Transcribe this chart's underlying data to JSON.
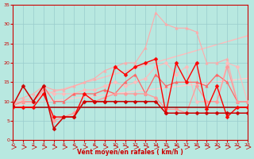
{
  "xlabel": "Vent moyen/en rafales ( km/h )",
  "xlim": [
    0,
    23
  ],
  "ylim": [
    0,
    35
  ],
  "yticks": [
    0,
    5,
    10,
    15,
    20,
    25,
    30,
    35
  ],
  "xticks": [
    0,
    1,
    2,
    3,
    4,
    5,
    6,
    7,
    8,
    9,
    10,
    11,
    12,
    13,
    14,
    15,
    16,
    17,
    18,
    19,
    20,
    21,
    22,
    23
  ],
  "bg_color": "#b8e8e0",
  "grid_color": "#99cccc",
  "series": [
    {
      "x": [
        0,
        23
      ],
      "y": [
        9.5,
        27.0
      ],
      "color": "#ffbbbb",
      "lw": 1.0,
      "marker": null,
      "ms": 0,
      "zorder": 1
    },
    {
      "x": [
        0,
        23
      ],
      "y": [
        9.0,
        16.0
      ],
      "color": "#ffcccc",
      "lw": 1.0,
      "marker": null,
      "ms": 0,
      "zorder": 1
    },
    {
      "x": [
        0,
        1,
        2,
        3,
        4,
        5,
        6,
        7,
        8,
        9,
        10,
        11,
        12,
        13,
        14,
        15,
        16,
        17,
        18,
        19,
        20,
        21,
        22,
        23
      ],
      "y": [
        10,
        11,
        12,
        14,
        13,
        13,
        14,
        15,
        16,
        18,
        19,
        20,
        20,
        24,
        33,
        30,
        29,
        29,
        28,
        20,
        20,
        21,
        10,
        10
      ],
      "color": "#ffaaaa",
      "lw": 0.8,
      "marker": "^",
      "ms": 2.5,
      "zorder": 2
    },
    {
      "x": [
        0,
        1,
        2,
        3,
        4,
        5,
        6,
        7,
        8,
        9,
        10,
        11,
        12,
        13,
        14,
        15,
        16,
        17,
        18,
        19,
        20,
        21,
        22,
        23
      ],
      "y": [
        10,
        10,
        10,
        13,
        12,
        12,
        12,
        13,
        13,
        14,
        15,
        14,
        15,
        16,
        19,
        20,
        17,
        19,
        10,
        10,
        10,
        20,
        19,
        10
      ],
      "color": "#ffbbbb",
      "lw": 0.8,
      "marker": "D",
      "ms": 2.5,
      "zorder": 2
    },
    {
      "x": [
        0,
        1,
        2,
        3,
        4,
        5,
        6,
        7,
        8,
        9,
        10,
        11,
        12,
        13,
        14,
        15,
        16,
        17,
        18,
        19,
        20,
        21,
        22,
        23
      ],
      "y": [
        9,
        10,
        10,
        14,
        10,
        10,
        12,
        12,
        12,
        13,
        12,
        15,
        17,
        12,
        17,
        14,
        15,
        15,
        15,
        14,
        17,
        15,
        10,
        10
      ],
      "color": "#ff6666",
      "lw": 0.9,
      "marker": "^",
      "ms": 2.5,
      "zorder": 3
    },
    {
      "x": [
        0,
        1,
        2,
        3,
        4,
        5,
        6,
        7,
        8,
        9,
        10,
        11,
        12,
        13,
        14,
        15,
        16,
        17,
        18,
        19,
        20,
        21,
        22,
        23
      ],
      "y": [
        9,
        10,
        10,
        13,
        5,
        6,
        7,
        10,
        10,
        11,
        12,
        12,
        12,
        12,
        11,
        8,
        8,
        7,
        14,
        10,
        10,
        19,
        10,
        10
      ],
      "color": "#ff9999",
      "lw": 0.9,
      "marker": "D",
      "ms": 2.5,
      "zorder": 3
    },
    {
      "x": [
        0,
        1,
        2,
        3,
        4,
        5,
        6,
        7,
        8,
        9,
        10,
        11,
        12,
        13,
        14,
        15,
        16,
        17,
        18,
        19,
        20,
        21,
        22,
        23
      ],
      "y": [
        8.5,
        8.5,
        8.5,
        8.5,
        8.5,
        8.5,
        8.5,
        8.5,
        8.5,
        8.5,
        8.5,
        8.5,
        8.5,
        8.5,
        8.5,
        8.5,
        8.5,
        8.5,
        8.5,
        8.5,
        8.5,
        8.5,
        8.5,
        8.5
      ],
      "color": "#990000",
      "lw": 1.1,
      "marker": null,
      "ms": 0,
      "zorder": 4
    },
    {
      "x": [
        0,
        1,
        2,
        3,
        4,
        5,
        6,
        7,
        8,
        9,
        10,
        11,
        12,
        13,
        14,
        15,
        16,
        17,
        18,
        19,
        20,
        21,
        22,
        23
      ],
      "y": [
        8.5,
        8.5,
        8.5,
        12,
        6,
        6,
        6,
        12,
        10,
        10,
        19,
        17,
        19,
        20,
        21,
        7,
        20,
        15,
        20,
        8,
        14,
        6,
        8.5,
        8.5
      ],
      "color": "#ff0000",
      "lw": 1.0,
      "marker": "D",
      "ms": 2.5,
      "zorder": 5
    },
    {
      "x": [
        0,
        1,
        2,
        3,
        4,
        5,
        6,
        7,
        8,
        9,
        10,
        11,
        12,
        13,
        14,
        15,
        16,
        17,
        18,
        19,
        20,
        21,
        22,
        23
      ],
      "y": [
        9,
        14,
        10,
        14,
        3,
        6,
        6,
        10,
        10,
        10,
        10,
        10,
        10,
        10,
        10,
        7,
        7,
        7,
        7,
        7,
        7,
        7,
        7,
        7
      ],
      "color": "#cc0000",
      "lw": 1.1,
      "marker": "D",
      "ms": 2.5,
      "zorder": 6
    }
  ]
}
